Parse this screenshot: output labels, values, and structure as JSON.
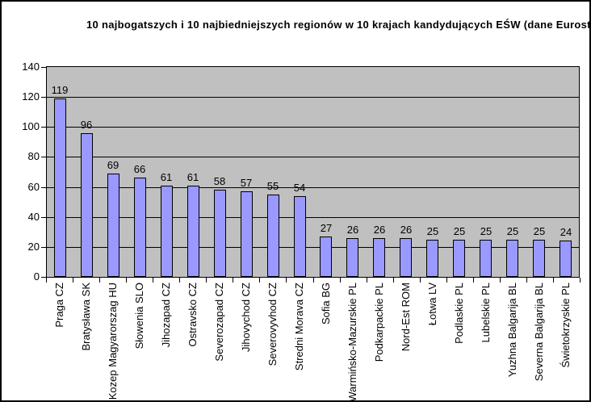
{
  "chart_data": {
    "type": "bar",
    "title": "10 najbogatszych i 10 najbiedniejszych regionów w 10 krajach kandydujących EŚW (dane Eurost",
    "categories": [
      "Praga CZ",
      "Bratysława SK",
      "Kozep Magyarorszag HU",
      "Słowenia SLO",
      "Jihozapad CZ",
      "Ostravsko CZ",
      "Severozapad CZ",
      "Jihovychod CZ",
      "Severovyvhod CZ",
      "Stredni Morava CZ",
      "Sofia BG",
      "Warmińsko-Mazurskie PL",
      "Podkarpackie PL",
      "Nord-Est ROM",
      "Łotwa LV",
      "Podlaskie PL",
      "Lubelskie PL",
      "Yuzhna Balgarija BL",
      "Severna Balgarija BL",
      "Świetokrzyskie PL"
    ],
    "values": [
      119,
      96,
      69,
      66,
      61,
      61,
      58,
      57,
      55,
      54,
      27,
      26,
      26,
      26,
      25,
      25,
      25,
      25,
      25,
      24
    ],
    "ylim": [
      0,
      140
    ],
    "yticks": [
      0,
      20,
      40,
      60,
      80,
      100,
      120,
      140
    ],
    "xlabel": "",
    "ylabel": "",
    "grid": true,
    "legend": "none",
    "show_value_labels": true,
    "colors": {
      "bar_fill": "#9999FF",
      "bar_border": "#000000",
      "plot_bg": "#C0C0C0",
      "grid_line": "#000000",
      "chart_bg": "#FFFFFF",
      "frame_border": "#000000",
      "text": "#000000"
    }
  }
}
